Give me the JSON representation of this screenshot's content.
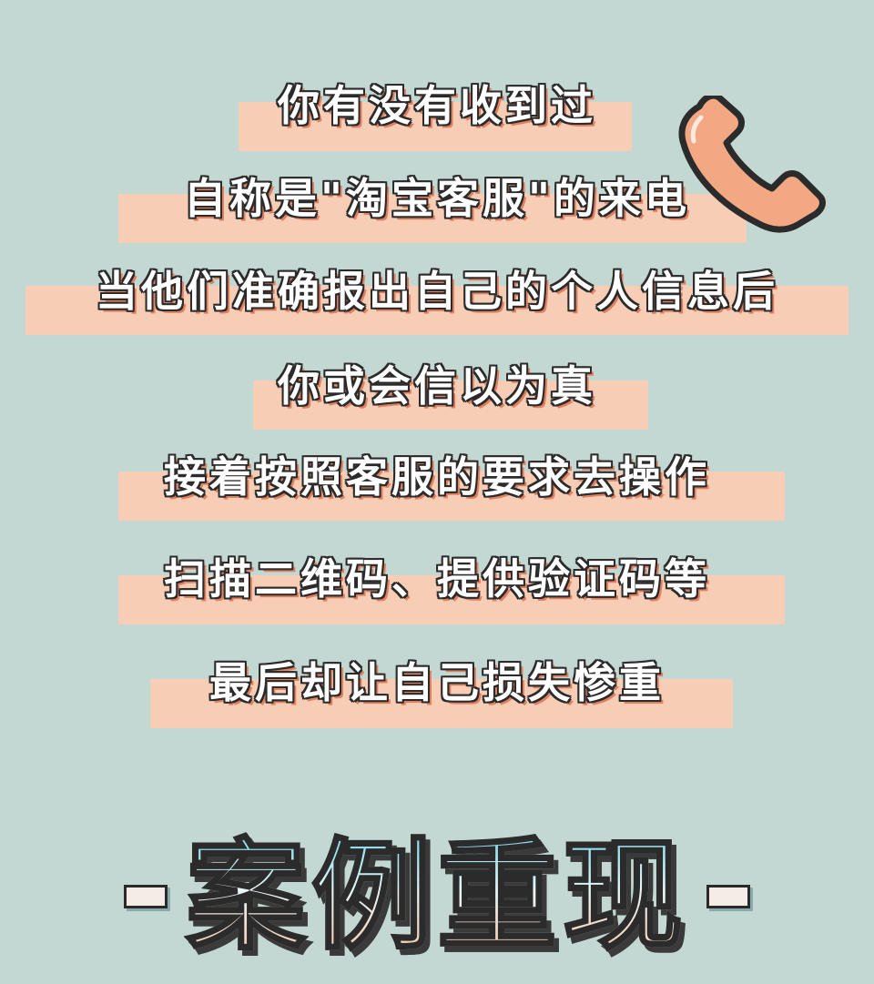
{
  "lines": [
    "你有没有收到过",
    "自称是\"淘宝客服\"的来电",
    "当他们准确报出自己的个人信息后",
    "你或会信以为真",
    "接着按照客服的要求去操作",
    "扫描二维码、提供验证码等",
    "最后却让自己损失惨重"
  ],
  "footer": {
    "title": "案例重现"
  },
  "icons": {
    "phone": "phone-handset-icon"
  },
  "colors": {
    "background": "#c3d8d3",
    "highlight": "#f7cdb6",
    "phone": "#f2a882"
  }
}
